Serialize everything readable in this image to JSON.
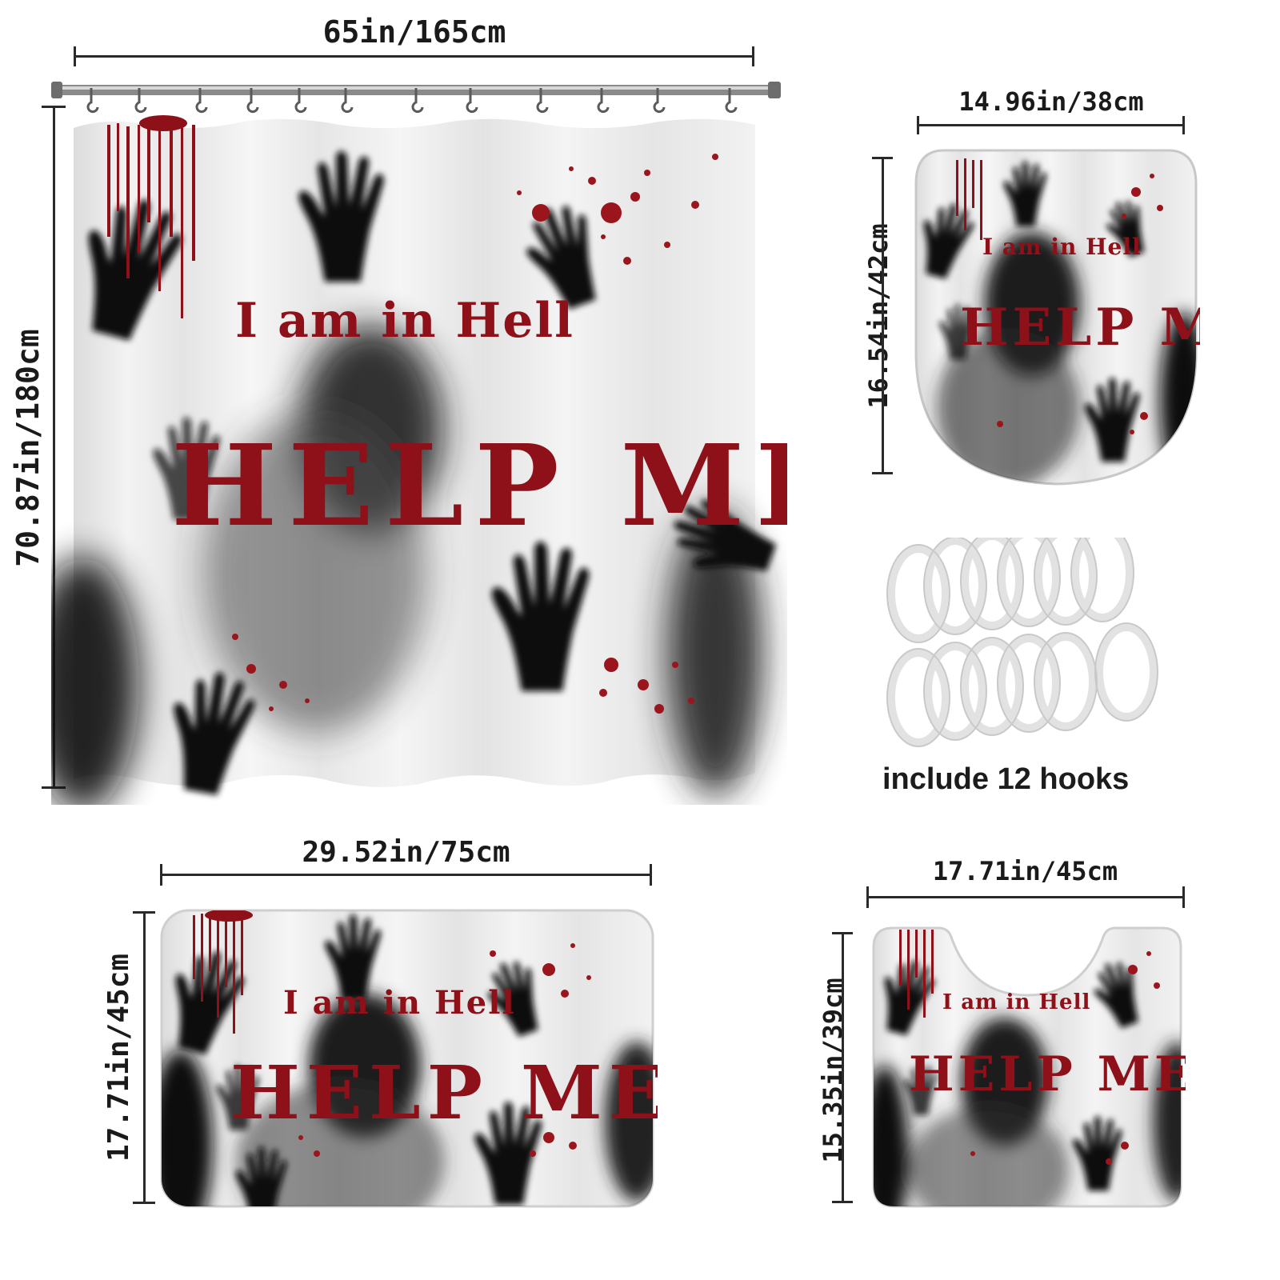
{
  "curtain": {
    "width_label": "65in/165cm",
    "height_label": "70.87in/180cm",
    "text_top": "I am in Hell",
    "text_main": "HELP ME"
  },
  "lid_cover": {
    "width_label": "14.96in/38cm",
    "height_label": "16.54in/42cm",
    "text_top": "I am in Hell",
    "text_main": "HELP ME"
  },
  "hooks": {
    "caption": "include 12 hooks",
    "count": 12
  },
  "bath_mat": {
    "width_label": "29.52in/75cm",
    "height_label": "17.71in/45cm",
    "text_top": "I am in Hell",
    "text_main": "HELP ME"
  },
  "contour_mat": {
    "width_label": "17.71in/45cm",
    "height_label": "15.35in/39cm",
    "text_top": "I am in Hell",
    "text_main": "HELP ME"
  },
  "colors": {
    "blood": "#8e1018",
    "shadow": "#111111",
    "fabric": "#f1f1f1"
  }
}
